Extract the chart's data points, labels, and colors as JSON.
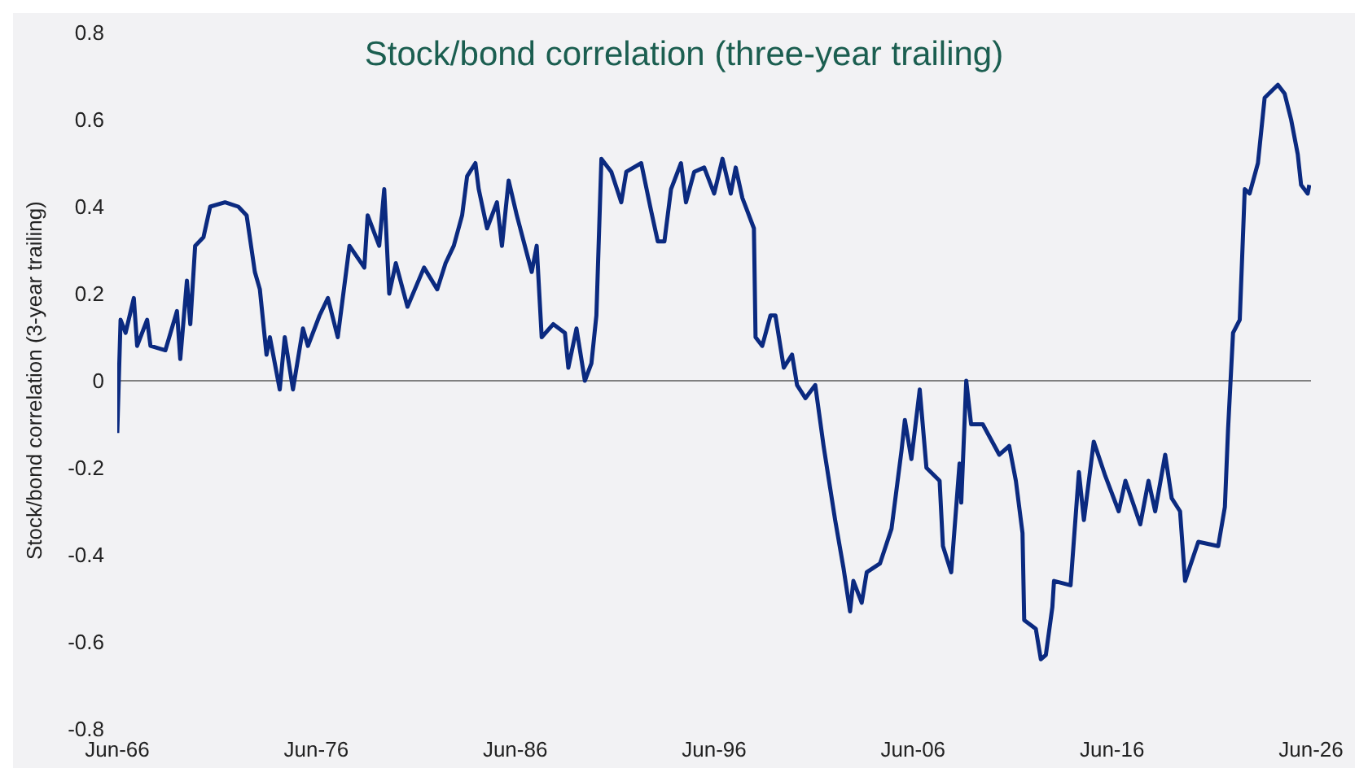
{
  "chart_data": {
    "type": "line",
    "title": "Stock/bond correlation (three-year trailing)",
    "ylabel": "Stock/bond correlation (3-year trailing)",
    "x": [
      "1966-06",
      "1966-08",
      "1966-11",
      "1967-04",
      "1967-06",
      "1967-12",
      "1968-02",
      "1968-11",
      "1969-06",
      "1969-08",
      "1969-12",
      "1970-02",
      "1970-05",
      "1970-10",
      "1971-02",
      "1971-11",
      "1972-07",
      "1972-12",
      "1973-05",
      "1973-08",
      "1973-12",
      "1974-02",
      "1974-08",
      "1974-11",
      "1975-04",
      "1975-10",
      "1976-01",
      "1976-08",
      "1977-01",
      "1977-07",
      "1978-02",
      "1978-11",
      "1979-01",
      "1979-08",
      "1979-11",
      "1980-02",
      "1980-06",
      "1981-01",
      "1981-11",
      "1982-07",
      "1982-12",
      "1983-05",
      "1983-10",
      "1984-01",
      "1984-06",
      "1984-08",
      "1985-01",
      "1985-07",
      "1985-10",
      "1986-02",
      "1986-07",
      "1987-04",
      "1987-07",
      "1987-10",
      "1988-05",
      "1988-12",
      "1989-02",
      "1989-07",
      "1989-12",
      "1990-04",
      "1990-07",
      "1990-10",
      "1991-04",
      "1991-10",
      "1992-01",
      "1992-10",
      "1993-04",
      "1993-08",
      "1993-12",
      "1994-04",
      "1994-10",
      "1995-01",
      "1995-06",
      "1995-12",
      "1996-06",
      "1996-11",
      "1997-04",
      "1997-07",
      "1997-11",
      "1998-06",
      "1998-07",
      "1998-11",
      "1999-04",
      "1999-07",
      "1999-12",
      "2000-05",
      "2000-08",
      "2001-01",
      "2001-07",
      "2001-12",
      "2002-07",
      "2002-12",
      "2003-04",
      "2003-06",
      "2003-11",
      "2004-02",
      "2004-10",
      "2005-05",
      "2005-11",
      "2006-01",
      "2006-05",
      "2006-10",
      "2007-02",
      "2007-10",
      "2007-12",
      "2008-05",
      "2008-10",
      "2008-11",
      "2009-02",
      "2009-05",
      "2009-12",
      "2010-10",
      "2011-04",
      "2011-08",
      "2011-12",
      "2012-01",
      "2012-08",
      "2012-11",
      "2013-02",
      "2013-06",
      "2013-07",
      "2014-05",
      "2014-10",
      "2015-01",
      "2015-07",
      "2016-02",
      "2016-10",
      "2017-02",
      "2017-11",
      "2018-04",
      "2018-08",
      "2019-02",
      "2019-06",
      "2019-11",
      "2020-02",
      "2020-10",
      "2021-10",
      "2022-02",
      "2022-04",
      "2022-07",
      "2022-11",
      "2023-02",
      "2023-05",
      "2023-10",
      "2024-02",
      "2024-10",
      "2025-02",
      "2025-06",
      "2025-10",
      "2025-12",
      "2026-04",
      "2026-05"
    ],
    "series": [
      {
        "color": "#0b2a80",
        "values": [
          -0.12,
          0.14,
          0.11,
          0.19,
          0.08,
          0.14,
          0.08,
          0.07,
          0.16,
          0.05,
          0.23,
          0.13,
          0.31,
          0.33,
          0.4,
          0.41,
          0.4,
          0.38,
          0.25,
          0.21,
          0.06,
          0.1,
          -0.02,
          0.1,
          -0.02,
          0.12,
          0.08,
          0.15,
          0.19,
          0.1,
          0.31,
          0.26,
          0.38,
          0.31,
          0.44,
          0.2,
          0.27,
          0.17,
          0.26,
          0.21,
          0.27,
          0.31,
          0.38,
          0.47,
          0.5,
          0.44,
          0.35,
          0.41,
          0.31,
          0.46,
          0.38,
          0.25,
          0.31,
          0.1,
          0.13,
          0.11,
          0.03,
          0.12,
          0.0,
          0.04,
          0.15,
          0.51,
          0.48,
          0.41,
          0.48,
          0.5,
          0.39,
          0.32,
          0.32,
          0.44,
          0.5,
          0.41,
          0.48,
          0.49,
          0.43,
          0.51,
          0.43,
          0.49,
          0.42,
          0.35,
          0.1,
          0.08,
          0.15,
          0.15,
          0.03,
          0.06,
          -0.01,
          -0.04,
          -0.01,
          -0.15,
          -0.32,
          -0.43,
          -0.53,
          -0.46,
          -0.51,
          -0.44,
          -0.42,
          -0.34,
          -0.16,
          -0.09,
          -0.18,
          -0.02,
          -0.2,
          -0.23,
          -0.38,
          -0.44,
          -0.19,
          -0.28,
          0.0,
          -0.1,
          -0.1,
          -0.17,
          -0.15,
          -0.23,
          -0.35,
          -0.55,
          -0.57,
          -0.64,
          -0.63,
          -0.52,
          -0.46,
          -0.47,
          -0.21,
          -0.32,
          -0.14,
          -0.22,
          -0.3,
          -0.23,
          -0.33,
          -0.23,
          -0.3,
          -0.17,
          -0.27,
          -0.3,
          -0.46,
          -0.37,
          -0.38,
          -0.29,
          -0.11,
          0.11,
          0.14,
          0.44,
          0.43,
          0.5,
          0.65,
          0.68,
          0.66,
          0.6,
          0.52,
          0.45,
          0.43,
          0.45
        ]
      }
    ],
    "xlim": [
      "1966-06",
      "2026-06"
    ],
    "xticks": [
      {
        "value": "1966-06",
        "label": "Jun-66"
      },
      {
        "value": "1976-06",
        "label": "Jun-76"
      },
      {
        "value": "1986-06",
        "label": "Jun-86"
      },
      {
        "value": "1996-06",
        "label": "Jun-96"
      },
      {
        "value": "2006-06",
        "label": "Jun-06"
      },
      {
        "value": "2016-06",
        "label": "Jun-16"
      },
      {
        "value": "2026-06",
        "label": "Jun-26"
      }
    ],
    "ylim": [
      -0.8,
      0.8
    ],
    "yticks": [
      -0.8,
      -0.6,
      -0.4,
      -0.2,
      0,
      0.2,
      0.4,
      0.6,
      0.8
    ],
    "ref_lines": [
      {
        "axis": "y",
        "value": 0,
        "color": "#808080"
      }
    ],
    "grid": false,
    "legend": false,
    "marker": "none",
    "line_style": "solid"
  }
}
